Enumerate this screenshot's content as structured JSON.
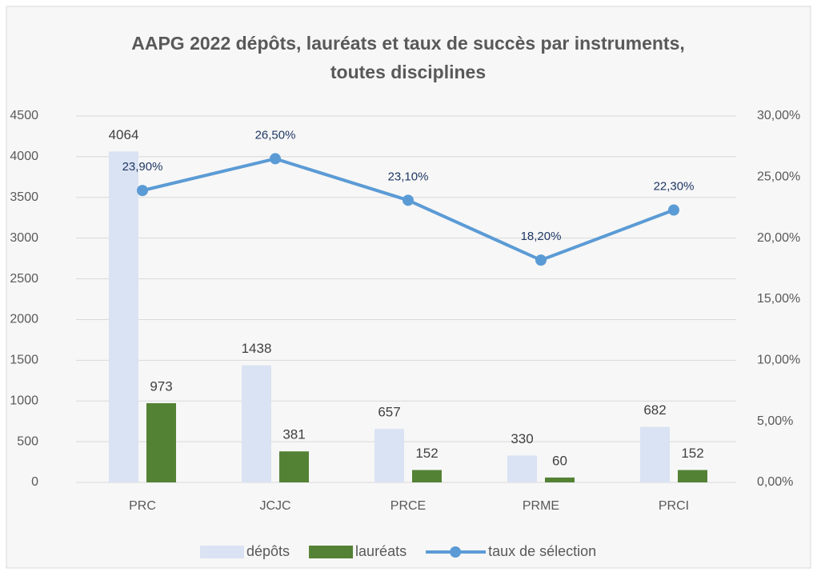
{
  "chart_data": {
    "type": "bar_line",
    "title": "AAPG 2022 dépôts, lauréats et taux de succès  par instruments, toutes disciplines",
    "categories": [
      "PRC",
      "JCJC",
      "PRCE",
      "PRME",
      "PRCI"
    ],
    "series": [
      {
        "name": "dépôts",
        "type": "bar",
        "color": "#dae3f3",
        "values": [
          4064,
          1438,
          657,
          330,
          682
        ]
      },
      {
        "name": "lauréats",
        "type": "bar",
        "color": "#548235",
        "values": [
          973,
          381,
          152,
          60,
          152
        ]
      },
      {
        "name": "taux de sélection",
        "type": "line",
        "axis": "y2",
        "color": "#5b9bd5",
        "values": [
          23.9,
          26.5,
          23.1,
          18.2,
          22.3
        ],
        "value_labels": [
          "23,90%",
          "26,50%",
          "23,10%",
          "18,20%",
          "22,30%"
        ]
      }
    ],
    "ylim": [
      0,
      4500
    ],
    "yticks": [
      0,
      500,
      1000,
      1500,
      2000,
      2500,
      3000,
      3500,
      4000,
      4500
    ],
    "y2lim": [
      0,
      30
    ],
    "y2ticks": [
      {
        "value": 0,
        "label": "0,00%"
      },
      {
        "value": 5,
        "label": "5,00%"
      },
      {
        "value": 10,
        "label": "10,00%"
      },
      {
        "value": 15,
        "label": "15,00%"
      },
      {
        "value": 20,
        "label": "20,00%"
      },
      {
        "value": 25,
        "label": "25,00%"
      },
      {
        "value": 30,
        "label": "30,00%"
      }
    ],
    "grid": true,
    "legend": "bottom"
  }
}
